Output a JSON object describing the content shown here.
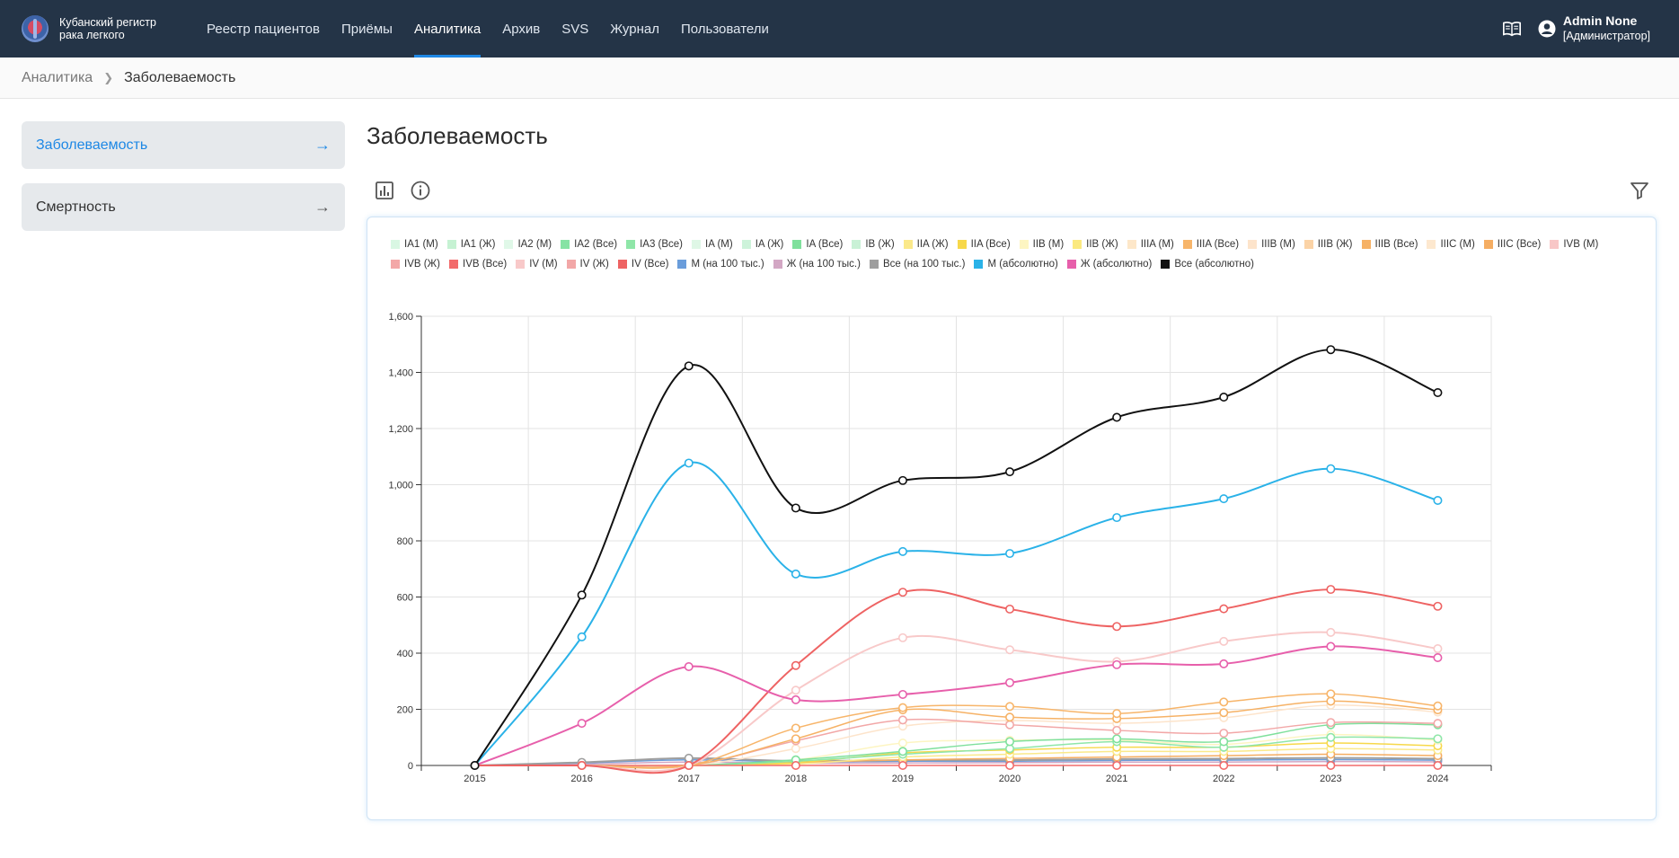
{
  "app": {
    "brand_line1": "Кубанский регистр",
    "brand_line2": "рака легкого",
    "nav": [
      "Реестр пациентов",
      "Приёмы",
      "Аналитика",
      "Архив",
      "SVS",
      "Журнал",
      "Пользователи"
    ],
    "active_nav": "Аналитика",
    "user_name": "Admin None",
    "user_role": "[Администратор]",
    "icons": [
      "book-icon",
      "user-circle-icon"
    ]
  },
  "breadcrumb": {
    "parent": "Аналитика",
    "current": "Заболеваемость"
  },
  "sidebar": {
    "items": [
      {
        "label": "Заболеваемость",
        "active": true
      },
      {
        "label": "Смертность",
        "active": false
      }
    ]
  },
  "main": {
    "title": "Заболеваемость",
    "toolbar_icons": [
      "bar-chart-icon",
      "info-icon",
      "filter-icon"
    ]
  },
  "chart_data": {
    "type": "line",
    "x": [
      2015,
      2016,
      2017,
      2018,
      2019,
      2020,
      2021,
      2022,
      2023,
      2024
    ],
    "ylim": [
      0,
      1600
    ],
    "yticks": [
      0,
      200,
      400,
      600,
      800,
      1000,
      1200,
      1400,
      1600
    ],
    "ytick_labels": [
      "0",
      "200",
      "400",
      "600",
      "800",
      "1,000",
      "1,200",
      "1,400",
      "1,600"
    ],
    "grid": true,
    "legend": [
      {
        "name": "IA1 (М)",
        "color": "#d9f7e3"
      },
      {
        "name": "IA1 (Ж)",
        "color": "#c6f2d3"
      },
      {
        "name": "IA2 (М)",
        "color": "#e0f8e8"
      },
      {
        "name": "IA2 (Все)",
        "color": "#86e3a4"
      },
      {
        "name": "IA3 (Все)",
        "color": "#8fe6a8"
      },
      {
        "name": "IA (М)",
        "color": "#dff7e6"
      },
      {
        "name": "IA (Ж)",
        "color": "#cdf3da"
      },
      {
        "name": "IA (Все)",
        "color": "#7fe09c"
      },
      {
        "name": "IB (Ж)",
        "color": "#c9f1d6"
      },
      {
        "name": "IIA (Ж)",
        "color": "#fbe98a"
      },
      {
        "name": "IIA (Все)",
        "color": "#f7d84a"
      },
      {
        "name": "IIB (М)",
        "color": "#fdf5c2"
      },
      {
        "name": "IIB (Ж)",
        "color": "#fbe97f"
      },
      {
        "name": "IIIA (М)",
        "color": "#fde7c9"
      },
      {
        "name": "IIIA (Все)",
        "color": "#f7b56a"
      },
      {
        "name": "IIIB (М)",
        "color": "#fde4cb"
      },
      {
        "name": "IIIB (Ж)",
        "color": "#fbd3a6"
      },
      {
        "name": "IIIB (Все)",
        "color": "#f6b266"
      },
      {
        "name": "IIIC (М)",
        "color": "#fde8cf"
      },
      {
        "name": "IIIC (Все)",
        "color": "#f5ad62"
      },
      {
        "name": "IVB (М)",
        "color": "#f8c7c7"
      },
      {
        "name": "IVB (Ж)",
        "color": "#f3a7a7"
      },
      {
        "name": "IVB (Все)",
        "color": "#f26b6b"
      },
      {
        "name": "IV (М)",
        "color": "#f8c9c9"
      },
      {
        "name": "IV (Ж)",
        "color": "#f2a7a7"
      },
      {
        "name": "IV (Все)",
        "color": "#ee6363"
      },
      {
        "name": "М (на 100 тыс.)",
        "color": "#6a9ddb"
      },
      {
        "name": "Ж (на 100 тыс.)",
        "color": "#d3a7c4"
      },
      {
        "name": "Все (на 100 тыс.)",
        "color": "#9e9e9e"
      },
      {
        "name": "М (абсолютно)",
        "color": "#2ab2e8"
      },
      {
        "name": "Ж (абсолютно)",
        "color": "#e75fab"
      },
      {
        "name": "Все (абсолютно)",
        "color": "#111111"
      }
    ],
    "series": [
      {
        "name": "Все (абсолютно)",
        "color": "#111111",
        "width": 2,
        "values": [
          0,
          607,
          1423,
          917,
          1015,
          1046,
          1240,
          1312,
          1481,
          1328
        ]
      },
      {
        "name": "М (абсолютно)",
        "color": "#2ab2e8",
        "width": 2,
        "values": [
          0,
          458,
          1077,
          682,
          762,
          755,
          883,
          950,
          1057,
          944
        ]
      },
      {
        "name": "Ж (абсолютно)",
        "color": "#e75fab",
        "width": 2,
        "values": [
          0,
          150,
          352,
          234,
          253,
          295,
          359,
          362,
          424,
          384
        ]
      },
      {
        "name": "IV (Все)",
        "color": "#ee6363",
        "width": 2,
        "values": [
          0,
          0,
          0,
          356,
          617,
          557,
          495,
          558,
          627,
          567
        ]
      },
      {
        "name": "IV (М)",
        "color": "#f8c9c9",
        "width": 2,
        "values": [
          0,
          0,
          0,
          268,
          455,
          412,
          370,
          442,
          474,
          416
        ]
      },
      {
        "name": "IIIA (Все)",
        "color": "#f7b56a",
        "width": 1.5,
        "values": [
          0,
          0,
          0,
          133,
          206,
          210,
          185,
          226,
          255,
          212
        ]
      },
      {
        "name": "IIIB (Все)",
        "color": "#f6b266",
        "width": 1.5,
        "values": [
          0,
          0,
          0,
          95,
          198,
          172,
          167,
          188,
          229,
          198
        ]
      },
      {
        "name": "IV (Ж)",
        "color": "#f2a7a7",
        "width": 1.5,
        "values": [
          0,
          0,
          0,
          88,
          162,
          145,
          125,
          115,
          153,
          150
        ]
      },
      {
        "name": "IVB (Все)",
        "color": "#f26b6b",
        "width": 1.5,
        "values": [
          0,
          0,
          0,
          0,
          0,
          0,
          0,
          0,
          0,
          0
        ]
      },
      {
        "name": "IIIB (М)",
        "color": "#fde4cb",
        "width": 1.5,
        "values": [
          0,
          0,
          0,
          60,
          140,
          160,
          150,
          170,
          215,
          190
        ]
      },
      {
        "name": "IA (Все)",
        "color": "#7fe09c",
        "width": 1.5,
        "values": [
          0,
          0,
          0,
          20,
          50,
          85,
          95,
          85,
          145,
          145
        ]
      },
      {
        "name": "IA3 (Все)",
        "color": "#8fe6a8",
        "width": 1.5,
        "values": [
          0,
          0,
          0,
          15,
          40,
          60,
          85,
          65,
          100,
          95
        ]
      },
      {
        "name": "IIB (М)",
        "color": "#fdf5c2",
        "width": 1.5,
        "values": [
          0,
          0,
          0,
          20,
          80,
          90,
          90,
          75,
          110,
          90
        ]
      },
      {
        "name": "IIA (Все)",
        "color": "#f7d84a",
        "width": 1.5,
        "values": [
          0,
          0,
          0,
          10,
          45,
          55,
          65,
          65,
          80,
          70
        ]
      },
      {
        "name": "IIA (Ж)",
        "color": "#fbe98a",
        "width": 1.5,
        "values": [
          0,
          0,
          0,
          5,
          30,
          40,
          50,
          50,
          60,
          55
        ]
      },
      {
        "name": "IIIC (Все)",
        "color": "#f5ad62",
        "width": 1.5,
        "values": [
          0,
          0,
          0,
          10,
          20,
          25,
          30,
          35,
          40,
          35
        ]
      },
      {
        "name": "Все (на 100 тыс.)",
        "color": "#9e9e9e",
        "width": 2,
        "values": [
          0,
          11,
          26,
          16,
          19,
          19,
          23,
          24,
          27,
          24
        ]
      },
      {
        "name": "М (на 100 тыс.)",
        "color": "#6a9ddb",
        "width": 1.5,
        "values": [
          0,
          9,
          20,
          13,
          15,
          15,
          18,
          19,
          21,
          19
        ]
      },
      {
        "name": "Ж (на 100 тыс.)",
        "color": "#d3a7c4",
        "width": 1.5,
        "values": [
          0,
          5,
          12,
          8,
          9,
          10,
          12,
          12,
          14,
          13
        ]
      }
    ]
  }
}
